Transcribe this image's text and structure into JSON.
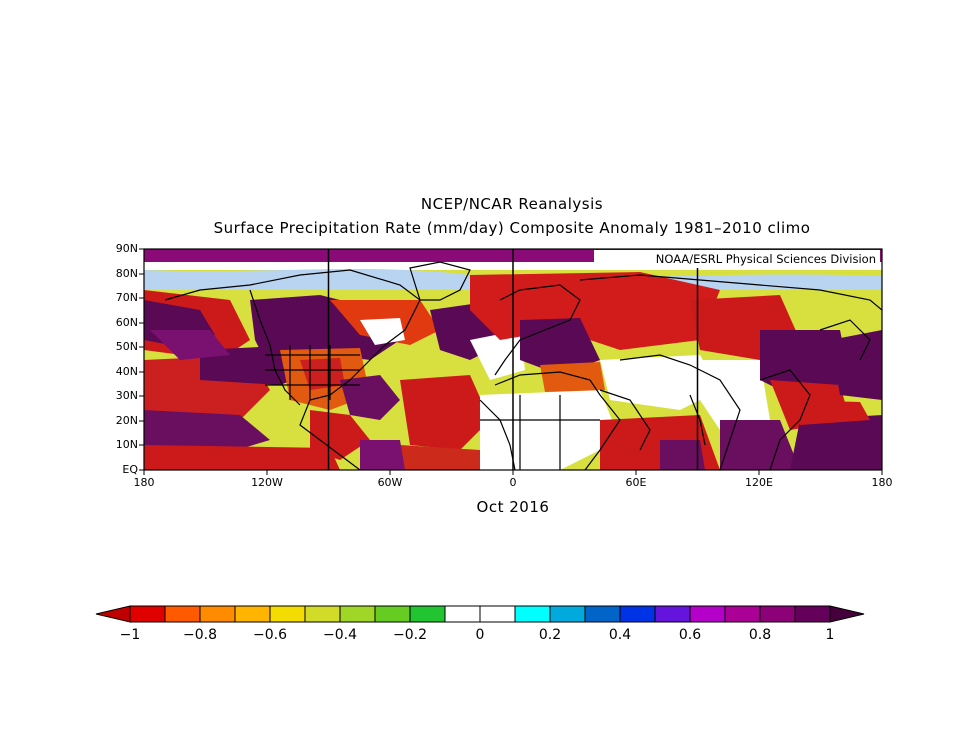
{
  "titles": {
    "line1": "NCEP/NCAR Reanalysis",
    "line2": "Surface Precipitation Rate (mm/day) Composite Anomaly 1981–2010 climo"
  },
  "credit": "NOAA/ESRL Physical Sciences Division",
  "date": "Oct 2016",
  "lat_ticks": [
    "90N",
    "80N",
    "70N",
    "60N",
    "50N",
    "40N",
    "30N",
    "20N",
    "10N",
    "EQ"
  ],
  "lon_ticks": [
    "180",
    "120W",
    "60W",
    "0",
    "60E",
    "120E",
    "180"
  ],
  "colorbar": {
    "labels": [
      "−1",
      "−0.8",
      "−0.6",
      "−0.4",
      "−0.2",
      "0",
      "0.2",
      "0.4",
      "0.6",
      "0.8",
      "1"
    ],
    "colors": [
      "#e10000",
      "#ff5a00",
      "#ff8c00",
      "#ffb400",
      "#f5dc00",
      "#d2dc28",
      "#a0d628",
      "#66cc22",
      "#22c432",
      "#ffffff",
      "#ffffff",
      "#00ffff",
      "#00aadc",
      "#0064c8",
      "#0032e6",
      "#6414dc",
      "#b400c8",
      "#aa0096",
      "#8c0078",
      "#64005a"
    ],
    "under_color": "#c00000",
    "over_color": "#46003c"
  },
  "map": {
    "region": "0-90N, 180W-180E",
    "projection": "cylindrical equidistant",
    "grid": "vertical lines every 90 deg longitude"
  }
}
